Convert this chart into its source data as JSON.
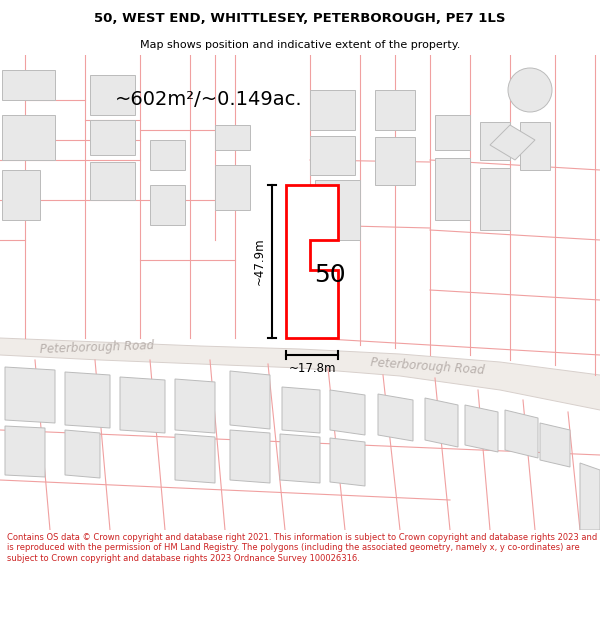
{
  "title_line1": "50, WEST END, WHITTLESEY, PETERBOROUGH, PE7 1LS",
  "title_line2": "Map shows position and indicative extent of the property.",
  "area_label": "~602m²/~0.149ac.",
  "property_number": "50",
  "dim_vertical": "~47.9m",
  "dim_horizontal": "~17.8m",
  "road_label": "Peterborough Road",
  "footer_text": "Contains OS data © Crown copyright and database right 2021. This information is subject to Crown copyright and database rights 2023 and is reproduced with the permission of HM Land Registry. The polygons (including the associated geometry, namely x, y co-ordinates) are subject to Crown copyright and database rights 2023 Ordnance Survey 100026316.",
  "bg_color": "#ffffff",
  "building_fill": "#e8e8e8",
  "building_edge": "#bbbbbb",
  "lot_line_color": "#f0a0a0",
  "road_fill": "#f0ece8",
  "road_edge": "#d8d0cc",
  "property_fill": "#ffffff",
  "property_edge": "#ff0000",
  "dim_color": "#000000",
  "road_label_color": "#b8b0ac",
  "title_color": "#000000",
  "footer_color": "#cc2222",
  "area_label_color": "#000000"
}
